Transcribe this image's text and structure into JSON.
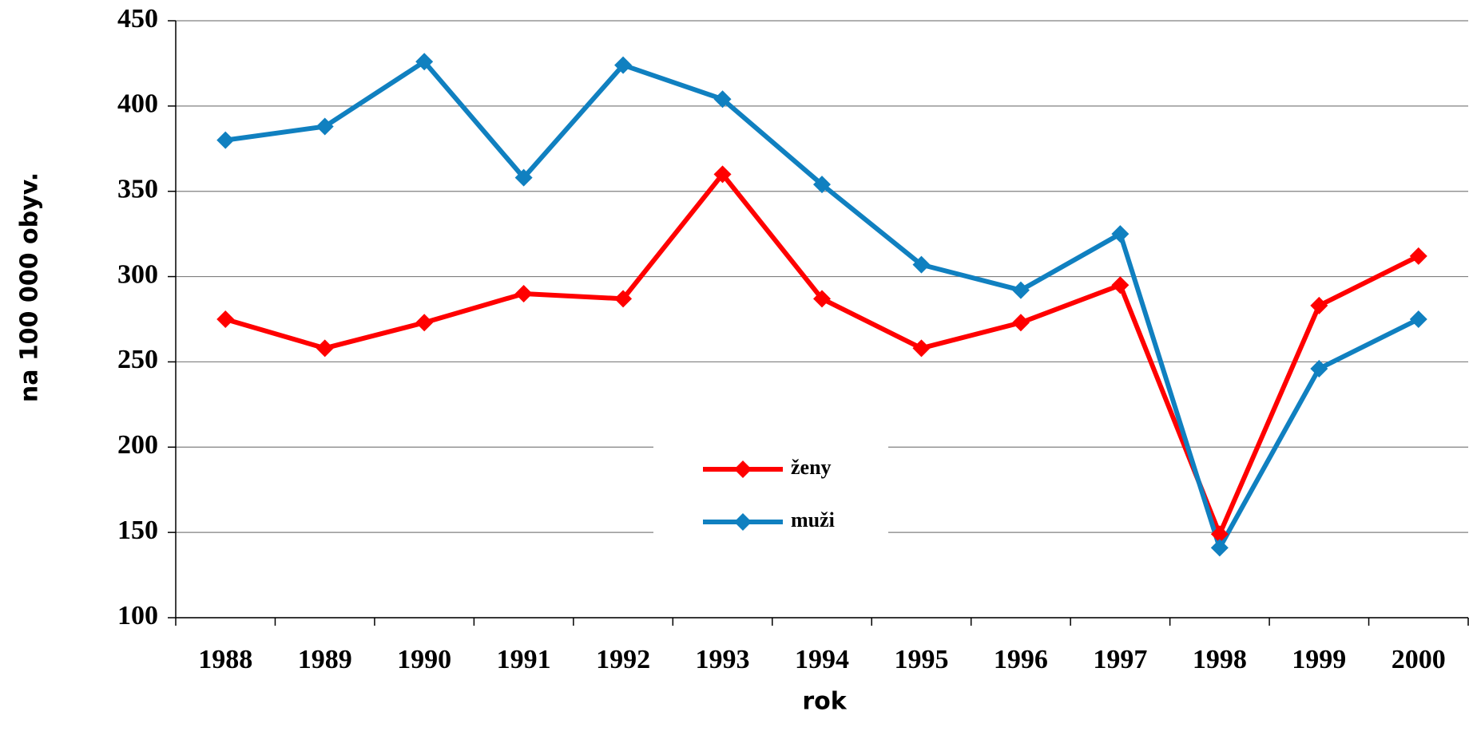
{
  "chart_data": {
    "type": "line",
    "categories": [
      "1988",
      "1989",
      "1990",
      "1991",
      "1992",
      "1993",
      "1994",
      "1995",
      "1996",
      "1997",
      "1998",
      "1999",
      "2000"
    ],
    "series": [
      {
        "name": "ženy",
        "color": "#ff0000",
        "values": [
          275,
          258,
          273,
          290,
          287,
          360,
          287,
          258,
          273,
          295,
          149,
          283,
          312
        ]
      },
      {
        "name": "muži",
        "color": "#1080c0",
        "values": [
          380,
          388,
          426,
          358,
          424,
          404,
          354,
          307,
          292,
          325,
          141,
          246,
          275
        ]
      }
    ],
    "ylim": [
      100,
      450
    ],
    "yticks": [
      100,
      150,
      200,
      250,
      300,
      350,
      400,
      450
    ],
    "xlabel": "rok",
    "ylabel": "na 100 000 obyv.",
    "grid": true,
    "legend": "center"
  }
}
